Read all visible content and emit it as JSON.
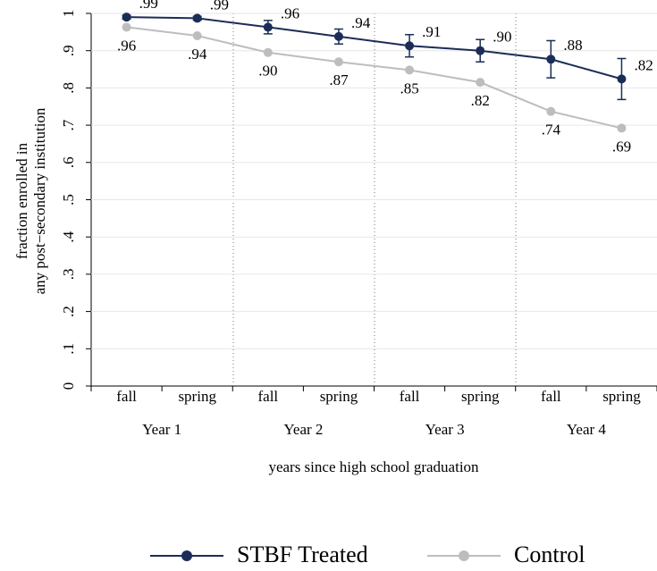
{
  "chart_data": {
    "type": "line",
    "ylabel": [
      "fraction enrolled in",
      "any post−secondary institution"
    ],
    "xlabel": "years since high school graduation",
    "categories": [
      "fall",
      "spring",
      "fall",
      "spring",
      "fall",
      "spring",
      "fall",
      "spring"
    ],
    "groups": [
      "Year 1",
      "Year 2",
      "Year 3",
      "Year 4"
    ],
    "series": [
      {
        "name": "STBF Treated",
        "color": "#1b2d57",
        "values": [
          0.99,
          0.987,
          0.963,
          0.938,
          0.913,
          0.9,
          0.877,
          0.824
        ],
        "value_labels": [
          ".99",
          ".99",
          ".96",
          ".94",
          ".91",
          ".90",
          ".88",
          ".82"
        ],
        "errors": [
          0.005,
          0.005,
          0.018,
          0.02,
          0.03,
          0.03,
          0.05,
          0.055
        ]
      },
      {
        "name": "Control",
        "color": "#bdbdbd",
        "values": [
          0.963,
          0.94,
          0.895,
          0.87,
          0.848,
          0.815,
          0.737,
          0.692
        ],
        "value_labels": [
          ".96",
          ".94",
          ".90",
          ".87",
          ".85",
          ".82",
          ".74",
          ".69"
        ]
      }
    ],
    "ylim": [
      0,
      1
    ],
    "yticks": [
      0,
      {
        "value": 0.1,
        "label": ".1"
      },
      {
        "value": 0.2,
        "label": ".2"
      },
      {
        "value": 0.3,
        "label": ".3"
      },
      {
        "value": 0.4,
        "label": ".4"
      },
      {
        "value": 0.5,
        "label": ".5"
      },
      {
        "value": 0.6,
        "label": ".6"
      },
      {
        "value": 0.7,
        "label": ".7"
      },
      {
        "value": 0.8,
        "label": ".8"
      },
      {
        "value": 0.9,
        "label": ".9"
      },
      1
    ],
    "grid": true
  }
}
